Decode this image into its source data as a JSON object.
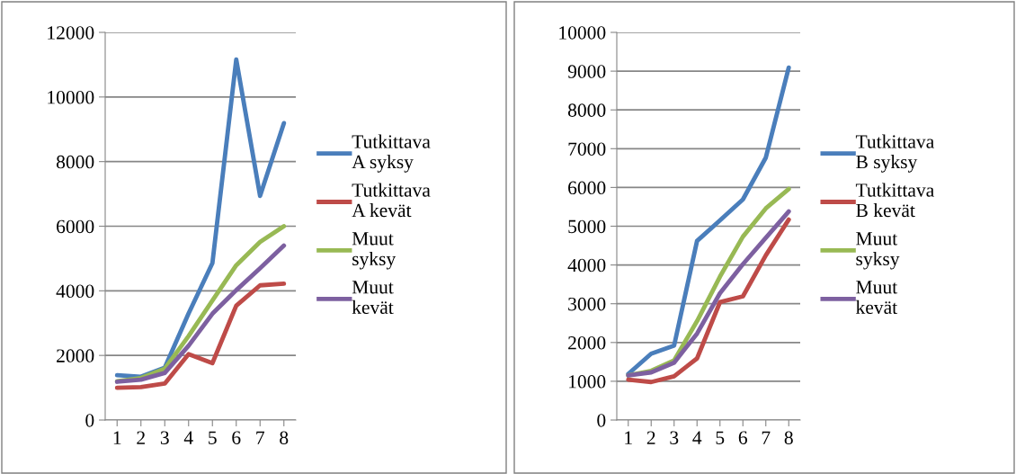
{
  "chart_data": [
    {
      "type": "line",
      "categories": [
        "1",
        "2",
        "3",
        "4",
        "5",
        "6",
        "7",
        "8"
      ],
      "ylim": [
        0,
        12000
      ],
      "yticks": [
        0,
        2000,
        4000,
        6000,
        8000,
        10000,
        12000
      ],
      "grid": "y",
      "legend": "right",
      "marker": "none",
      "line_style": "solid",
      "series": [
        {
          "name": "Tutkittava A syksy",
          "color": "#4a7ebb",
          "values": [
            1390,
            1340,
            1620,
            3300,
            4860,
            11160,
            6940,
            9190
          ]
        },
        {
          "name": "Tutkittava A kevät",
          "color": "#be4b48",
          "values": [
            1000,
            1020,
            1130,
            2040,
            1760,
            3540,
            4170,
            4220
          ]
        },
        {
          "name": "Muut syksy",
          "color": "#98b954",
          "values": [
            1200,
            1300,
            1590,
            2600,
            3700,
            4790,
            5510,
            6000
          ]
        },
        {
          "name": "Muut kevät",
          "color": "#7d60a0",
          "values": [
            1185,
            1250,
            1460,
            2300,
            3290,
            4020,
            4700,
            5400
          ]
        }
      ]
    },
    {
      "type": "line",
      "categories": [
        "1",
        "2",
        "3",
        "4",
        "5",
        "6",
        "7",
        "8"
      ],
      "ylim": [
        0,
        10000
      ],
      "yticks": [
        0,
        1000,
        2000,
        3000,
        4000,
        5000,
        6000,
        7000,
        8000,
        9000,
        10000
      ],
      "grid": "y",
      "legend": "right",
      "marker": "none",
      "line_style": "solid",
      "series": [
        {
          "name": "Tutkittava B syksy",
          "color": "#4a7ebb",
          "values": [
            1190,
            1710,
            1920,
            4620,
            5150,
            5690,
            6770,
            9090
          ]
        },
        {
          "name": "Tutkittava B kevät",
          "color": "#be4b48",
          "values": [
            1040,
            980,
            1130,
            1590,
            3040,
            3190,
            4250,
            5170
          ]
        },
        {
          "name": "Muut syksy",
          "color": "#98b954",
          "values": [
            1150,
            1270,
            1540,
            2550,
            3700,
            4730,
            5460,
            5960
          ]
        },
        {
          "name": "Muut kevät",
          "color": "#7d60a0",
          "values": [
            1150,
            1230,
            1480,
            2230,
            3270,
            4020,
            4700,
            5380
          ]
        }
      ]
    }
  ]
}
